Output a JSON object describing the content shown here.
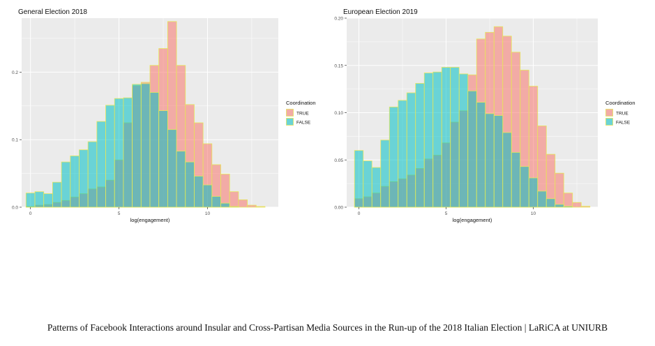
{
  "caption": "Patterns of Facebook Interactions around Insular and Cross-Partisan Media Sources in the Run-up of the 2018 Italian Election | LaRiCA at UNIURB",
  "colors": {
    "true_fill": "#F8766D",
    "false_fill": "#00BFC4",
    "bar_outline": "#E6E65A",
    "panel_bg": "#EBEBEB",
    "grid": "#FFFFFF"
  },
  "chart_data": [
    {
      "type": "bar",
      "title": "General Election 2018",
      "xlabel": "log(engagement)",
      "ylabel": "",
      "x_ticks": [
        0,
        5,
        10
      ],
      "y_ticks": [
        "0.0",
        "0.1",
        "0.2"
      ],
      "xlim": [
        -0.5,
        14
      ],
      "ylim": [
        0,
        0.28
      ],
      "bin_starts": [
        -0.25,
        0.25,
        0.75,
        1.25,
        1.75,
        2.25,
        2.75,
        3.25,
        3.75,
        4.25,
        4.75,
        5.25,
        5.75,
        6.25,
        6.75,
        7.25,
        7.75,
        8.25,
        8.75,
        9.25,
        9.75,
        10.25,
        10.75,
        11.25,
        11.75,
        12.25,
        12.75,
        13.25
      ],
      "bin_width": 0.5,
      "legend": {
        "title": "Coordination",
        "entries": [
          "TRUE",
          "FALSE"
        ],
        "position": "right"
      },
      "series": [
        {
          "name": "TRUE",
          "values": [
            0.001,
            0.003,
            0.004,
            0.007,
            0.01,
            0.015,
            0.02,
            0.027,
            0.03,
            0.04,
            0.07,
            0.125,
            0.18,
            0.185,
            0.21,
            0.235,
            0.275,
            0.21,
            0.152,
            0.125,
            0.094,
            0.063,
            0.049,
            0.023,
            0.011,
            0.003,
            0.001,
            0.0
          ]
        },
        {
          "name": "FALSE",
          "values": [
            0.021,
            0.023,
            0.02,
            0.037,
            0.067,
            0.076,
            0.085,
            0.097,
            0.127,
            0.151,
            0.161,
            0.162,
            0.182,
            0.183,
            0.17,
            0.143,
            0.115,
            0.083,
            0.067,
            0.046,
            0.033,
            0.016,
            0.006,
            0.001,
            0.0,
            0.0,
            0.0,
            0.0
          ]
        }
      ]
    },
    {
      "type": "bar",
      "title": "European Election 2019",
      "xlabel": "log(engagement)",
      "ylabel": "",
      "x_ticks": [
        0,
        5,
        10
      ],
      "y_ticks": [
        "0.00",
        "0.05",
        "0.10",
        "0.15",
        "0.20"
      ],
      "xlim": [
        -0.7,
        13.7
      ],
      "ylim": [
        0,
        0.2
      ],
      "bin_starts": [
        -0.25,
        0.25,
        0.75,
        1.25,
        1.75,
        2.25,
        2.75,
        3.25,
        3.75,
        4.25,
        4.75,
        5.25,
        5.75,
        6.25,
        6.75,
        7.25,
        7.75,
        8.25,
        8.75,
        9.25,
        9.75,
        10.25,
        10.75,
        11.25,
        11.75,
        12.25,
        12.75
      ],
      "bin_width": 0.5,
      "legend": {
        "title": "Coordination",
        "entries": [
          "TRUE",
          "FALSE"
        ],
        "position": "right"
      },
      "series": [
        {
          "name": "TRUE",
          "values": [
            0.009,
            0.011,
            0.015,
            0.022,
            0.027,
            0.03,
            0.034,
            0.041,
            0.051,
            0.055,
            0.068,
            0.09,
            0.102,
            0.14,
            0.178,
            0.185,
            0.191,
            0.181,
            0.164,
            0.145,
            0.128,
            0.086,
            0.056,
            0.036,
            0.015,
            0.005,
            0.001
          ]
        },
        {
          "name": "FALSE",
          "values": [
            0.06,
            0.049,
            0.042,
            0.071,
            0.106,
            0.113,
            0.121,
            0.131,
            0.142,
            0.143,
            0.148,
            0.148,
            0.141,
            0.123,
            0.111,
            0.099,
            0.097,
            0.079,
            0.058,
            0.043,
            0.031,
            0.017,
            0.009,
            0.003,
            0.001,
            0.0,
            0.0
          ]
        }
      ]
    }
  ]
}
